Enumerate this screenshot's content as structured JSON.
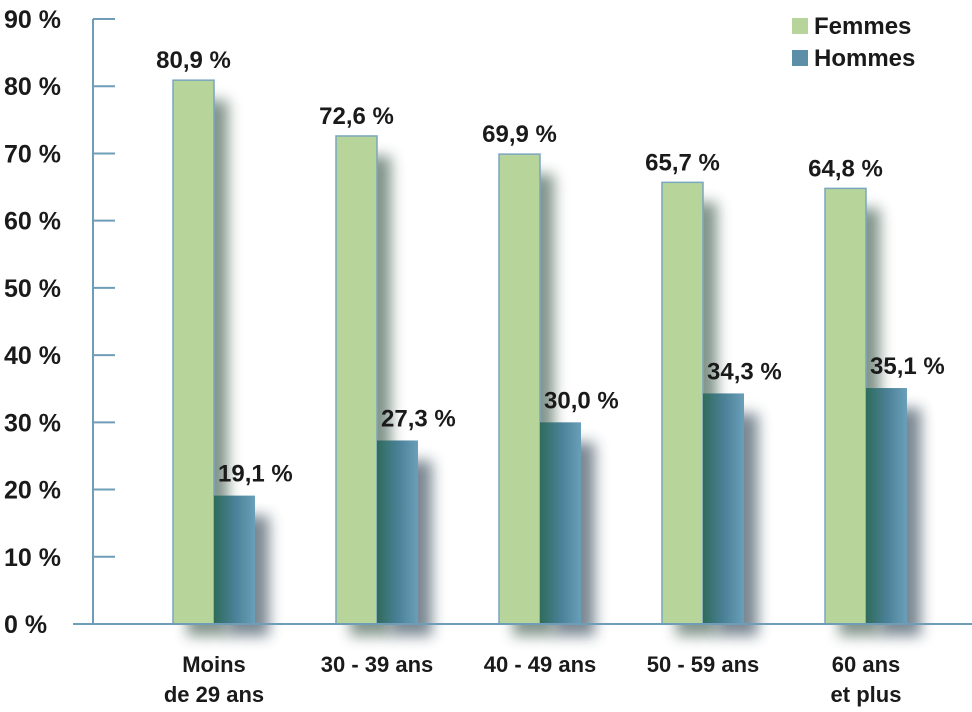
{
  "chart_data": {
    "type": "bar",
    "categories": [
      [
        "Moins",
        "de 29 ans"
      ],
      [
        "30 - 39 ans"
      ],
      [
        "40 - 49 ans"
      ],
      [
        "50 - 59 ans"
      ],
      [
        "60 ans",
        "et plus"
      ]
    ],
    "series": [
      {
        "name": "Femmes",
        "values": [
          80.9,
          72.6,
          69.9,
          65.7,
          64.8
        ],
        "labels": [
          "80,9 %",
          "72,6 %",
          "69,9 %",
          "65,7 %",
          "64,8 %"
        ],
        "color": "#b7d59a"
      },
      {
        "name": "Hommes",
        "values": [
          19.1,
          27.3,
          30.0,
          34.3,
          35.1
        ],
        "labels": [
          "19,1 %",
          "27,3 %",
          "30,0 %",
          "34,3 %",
          "35,1 %"
        ],
        "color": "#5d8ea8"
      }
    ],
    "ylim": [
      0,
      90
    ],
    "yticks": [
      0,
      10,
      20,
      30,
      40,
      50,
      60,
      70,
      80,
      90
    ],
    "ytick_labels": [
      "0 %",
      "10 %",
      "20 %",
      "30 %",
      "40 %",
      "50 %",
      "60 %",
      "70 %",
      "80 %",
      "90 %"
    ],
    "legend_position": "top-right",
    "grid": false,
    "axis_color": "#6f9db8"
  }
}
